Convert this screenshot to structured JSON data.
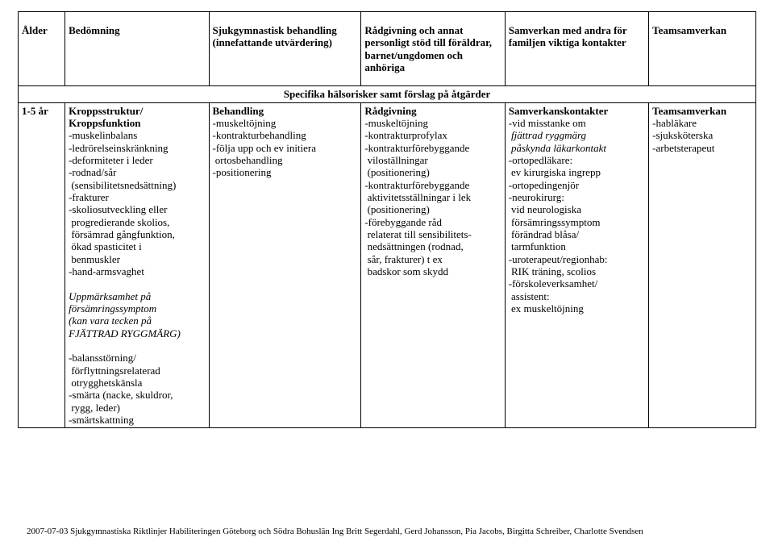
{
  "table": {
    "headers": {
      "c1": "Ålder",
      "c2": "Bedömning",
      "c3": "Sjukgymnastisk behandling\n(innefattande utvärdering)",
      "c4": "Rådgivning och annat\npersonligt stöd till\nföräldrar,\nbarnet/ungdomen och\nanhöriga",
      "c5": "Samverkan med andra\nför familjen viktiga\nkontakter",
      "c6": "Teamsamverkan"
    },
    "spanner": "Specifika hälsorisker samt förslag på åtgärder",
    "row": {
      "age": "1-5 år",
      "bedomning": {
        "title": "Kroppsstruktur/\nKroppsfunktion",
        "items": "-muskelinbalans\n-ledrörelseinskränkning\n-deformiteter i leder\n-rodnad/sår\n (sensibilitetsnedsättning)\n-frakturer\n-skoliosutveckling eller\n progredierande skolios,\n försämrad gångfunktion,\n ökad spasticitet i\n benmuskler\n-hand-armsvaghet",
        "italic": "Uppmärksamhet på\nförsämringssymptom\n(kan vara tecken på\nFJÄTTRAD RYGGMÄRG)",
        "items2": "-balansstörning/\n förflyttningsrelaterad\n otrygghetskänsla\n-smärta (nacke, skuldror,\n rygg, leder)\n-smärtskattning"
      },
      "behandling": {
        "title": "Behandling",
        "items": "-muskeltöjning\n-kontrakturbehandling\n-följa upp och ev initiera\n ortosbehandling\n-positionering"
      },
      "radgivning": {
        "title": "Rådgivning",
        "items": "-muskeltöjning\n-kontrakturprofylax\n-kontrakturförebyggande\n viloställningar\n (positionering)\n-kontrakturförebyggande\n aktivitetsställningar i lek\n (positionering)\n-förebyggande råd\n relaterat till sensibilitets-\n nedsättningen (rodnad,\n sår, frakturer) t ex\n badskor som skydd"
      },
      "samverkan": {
        "title": "Samverkanskontakter",
        "line1": "-vid misstanke om",
        "italic1": " fjättrad ryggmärg\n påskynda läkarkontakt",
        "rest": "-ortopedläkare:\n ev kirurgiska ingrepp\n-ortopedingenjör\n-neurokirurg:\n vid neurologiska\n försämringssymptom\n förändrad blåsa/\n tarmfunktion\n-uroterapeut/regionhab:\n RIK träning, scolios\n-förskoleverksamhet/\n assistent:\n ex muskeltöjning"
      },
      "team": {
        "title": "Teamsamverkan",
        "items": "-habläkare\n-sjuksköterska\n-arbetsterapeut"
      }
    }
  },
  "footer": "2007-07-03 Sjukgymnastiska Riktlinjer Habiliteringen Göteborg och Södra Bohuslän Ing Britt Segerdahl, Gerd Johansson, Pia Jacobs, Birgitta Schreiber, Charlotte Svendsen"
}
